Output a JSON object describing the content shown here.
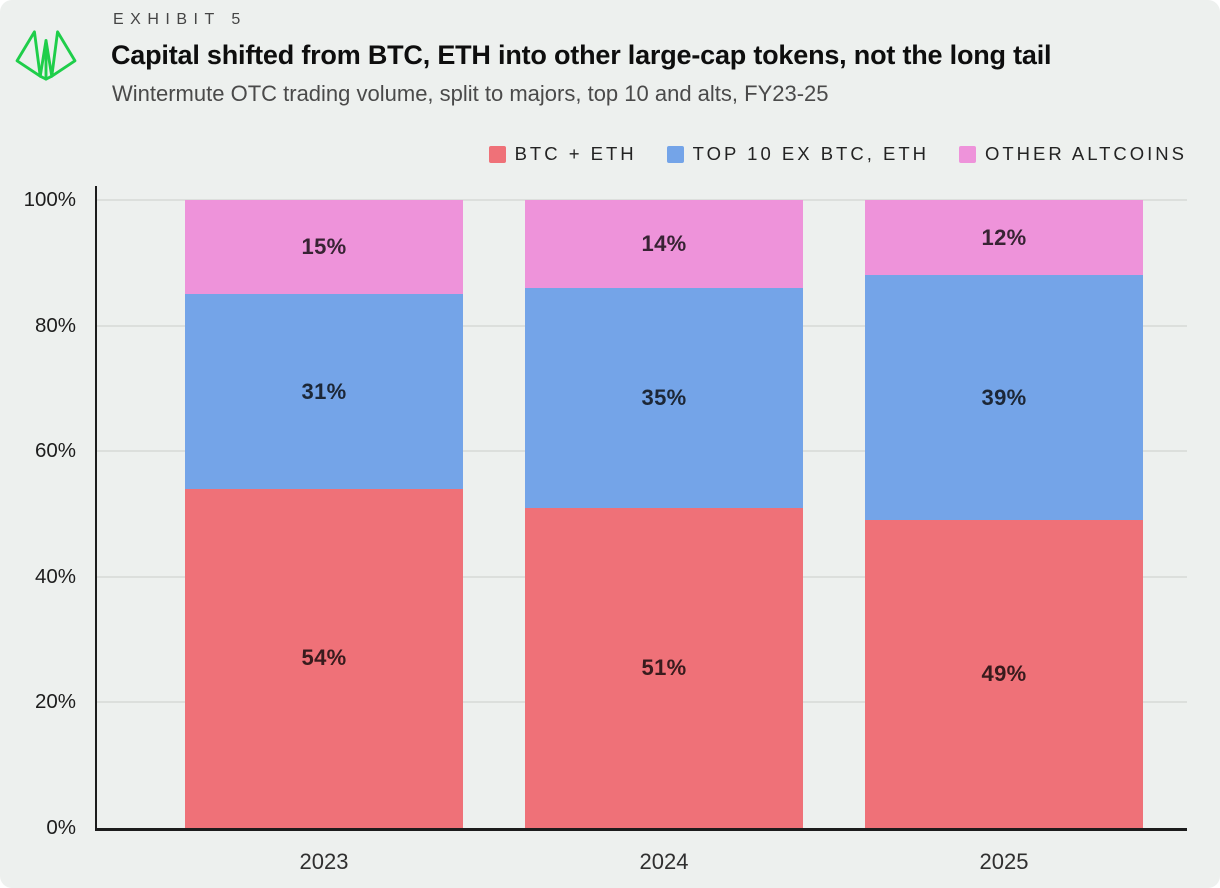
{
  "header": {
    "exhibit_label": "EXHIBIT 5",
    "title": "Capital shifted from BTC, ETH into other large-cap tokens, not the long tail",
    "subtitle": "Wintermute OTC trading volume, split to majors, top 10 and alts, FY23-25",
    "logo_name": "wintermute-logo",
    "logo_color": "#1fce4a"
  },
  "chart_data": {
    "type": "bar",
    "stacked": true,
    "title": "Capital shifted from BTC, ETH into other large-cap tokens, not the long tail",
    "subtitle": "Wintermute OTC trading volume, split to majors, top 10 and alts, FY23-25",
    "categories": [
      "2023",
      "2024",
      "2025"
    ],
    "series": [
      {
        "name": "BTC + ETH",
        "color": "#ef7178",
        "values": [
          54,
          51,
          49
        ]
      },
      {
        "name": "TOP 10 EX BTC, ETH",
        "color": "#74a4e8",
        "values": [
          31,
          35,
          39
        ]
      },
      {
        "name": "OTHER ALTCOINS",
        "color": "#ee93da",
        "values": [
          15,
          14,
          12
        ]
      }
    ],
    "value_suffix": "%",
    "ylim": [
      0,
      100
    ],
    "yticks": [
      "0%",
      "20%",
      "40%",
      "60%",
      "80%",
      "100%"
    ],
    "grid": true,
    "legend_position": "top-right",
    "xlabel": "",
    "ylabel": ""
  },
  "colors": {
    "background": "#edf0ee",
    "gridline": "#dcdfdc",
    "axis": "#1c1c1c",
    "bar_label_text": "#3c3c3c"
  }
}
